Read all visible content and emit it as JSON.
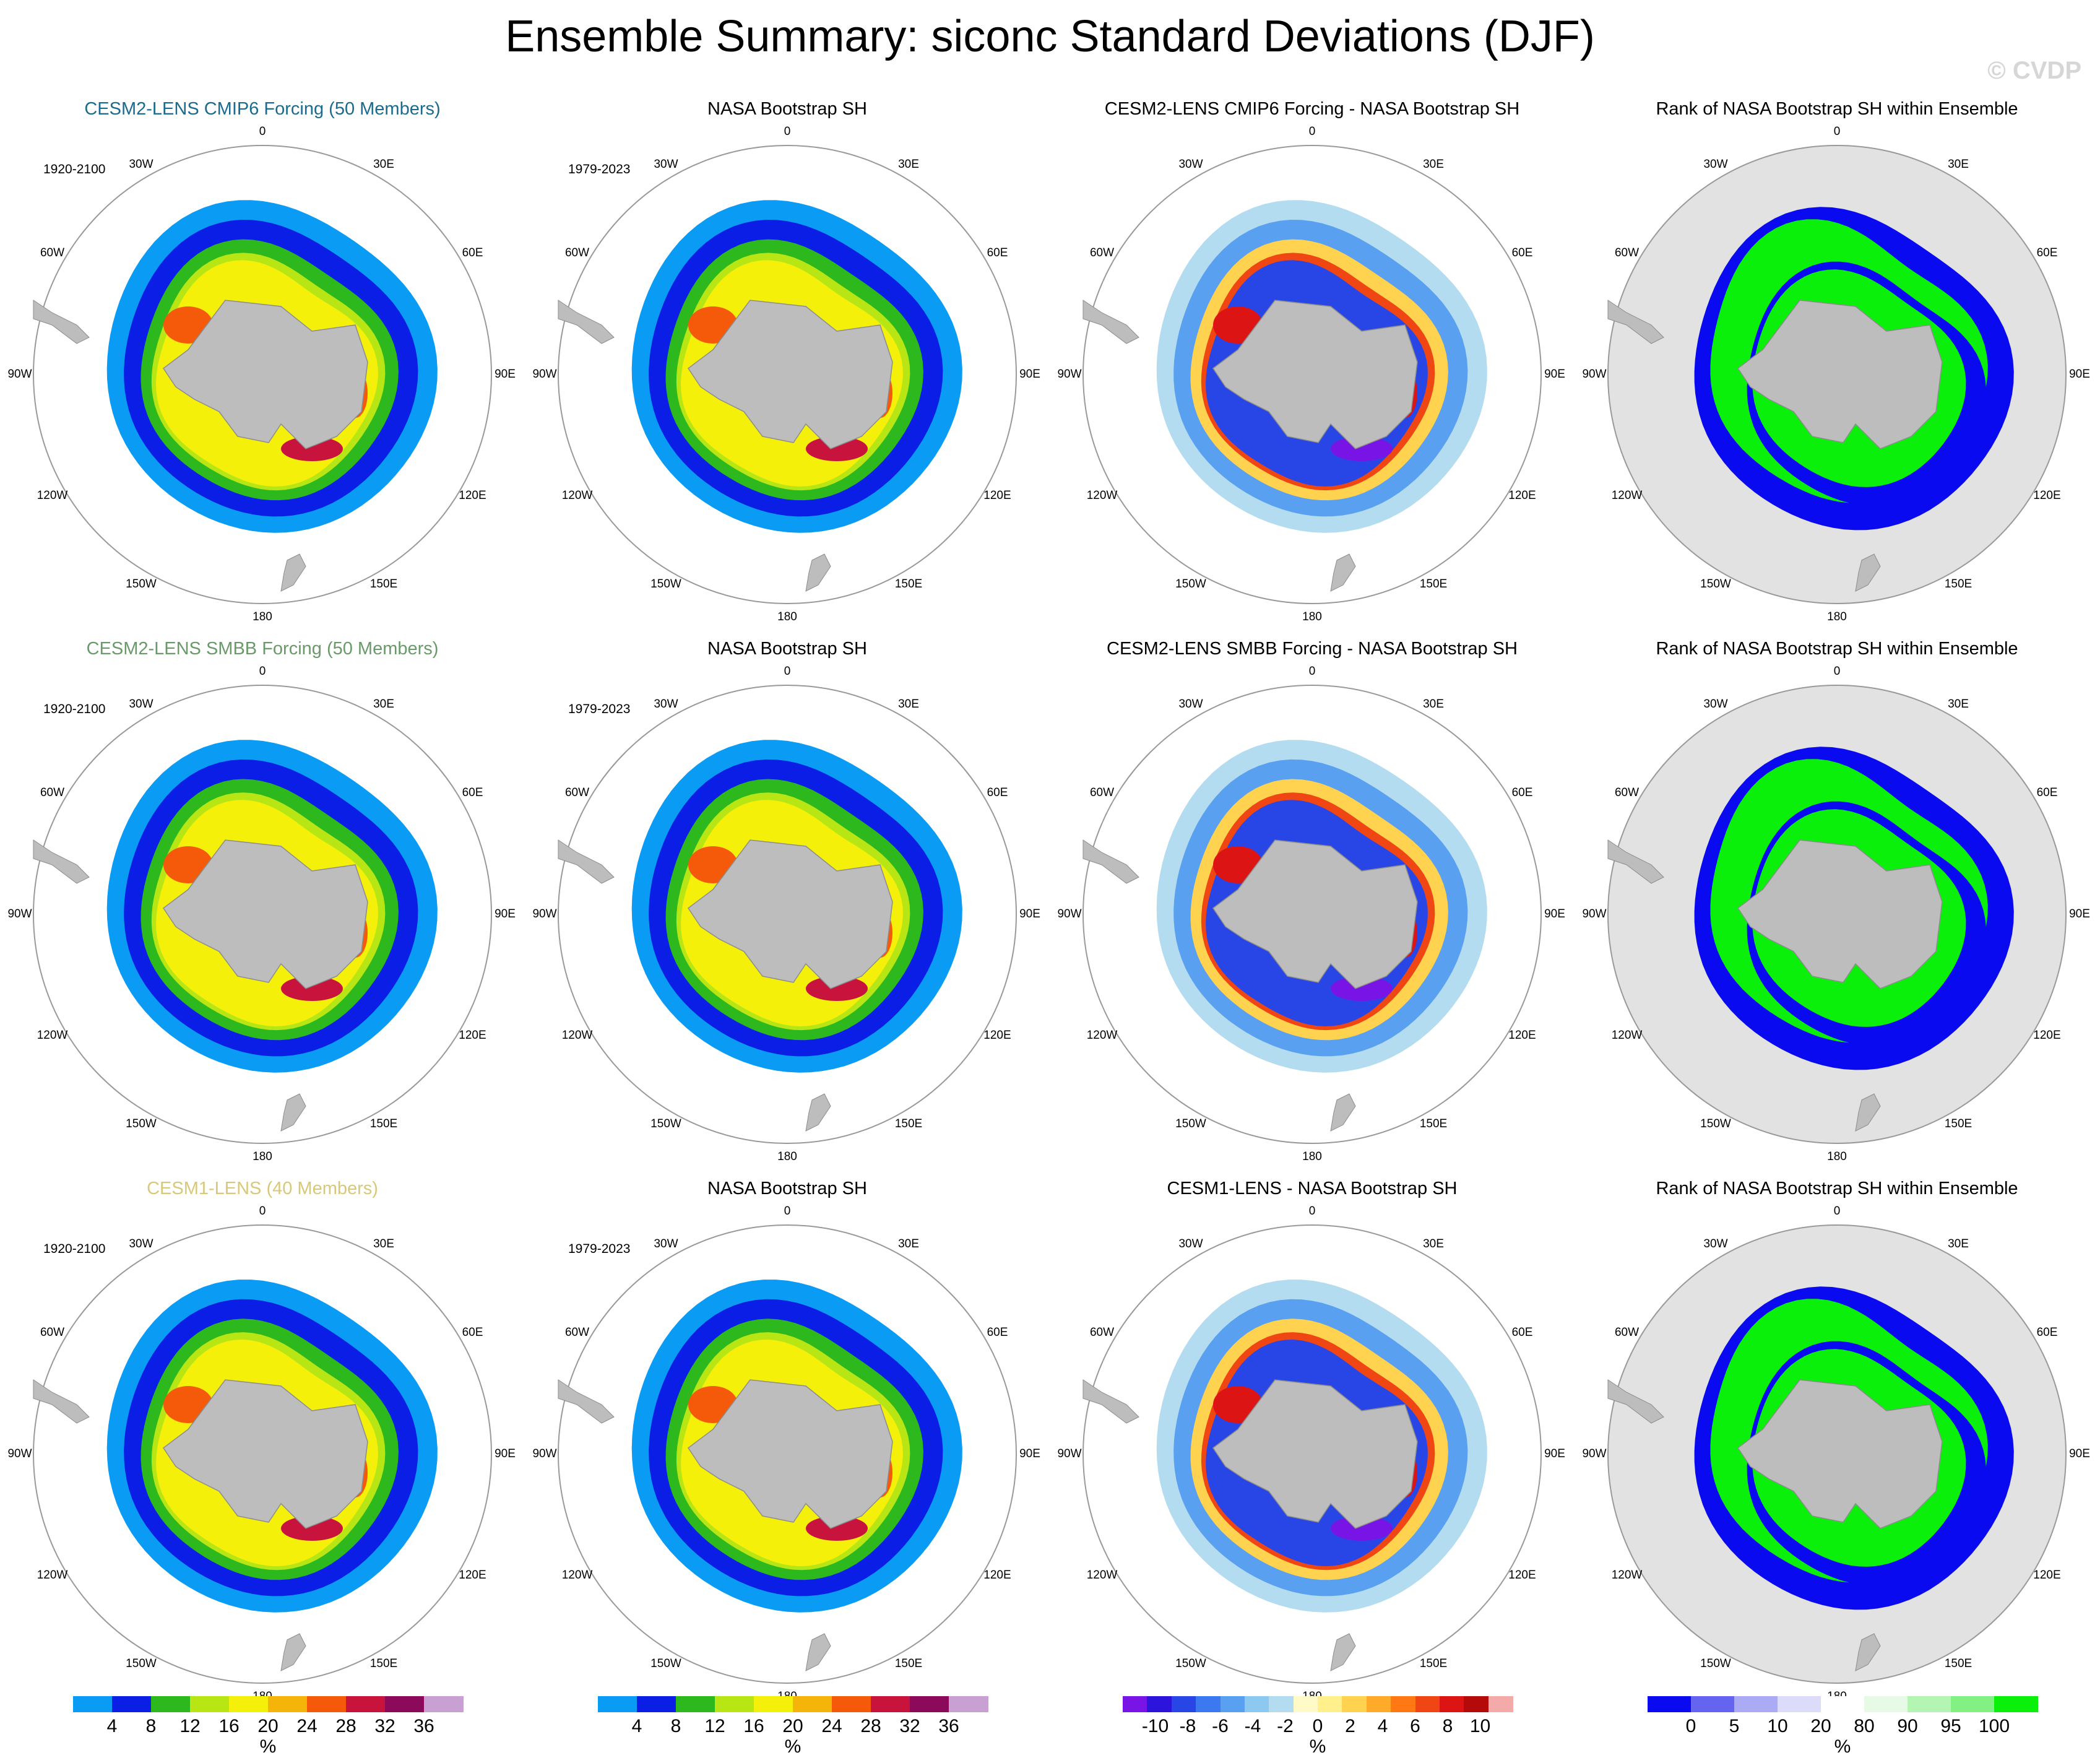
{
  "figure": {
    "title": "Ensemble Summary: siconc Standard Deviations (DJF)",
    "watermark": "© CVDP"
  },
  "rows": [
    {
      "titles": [
        "CESM2-LENS CMIP6 Forcing (50 Members)",
        "NASA Bootstrap SH",
        "CESM2-LENS CMIP6 Forcing - NASA Bootstrap SH",
        "Rank of NASA Bootstrap SH within Ensemble"
      ],
      "title_color": "#1a6b8f",
      "period_model": "1920-2100",
      "period_obs": "1979-2023"
    },
    {
      "titles": [
        "CESM2-LENS SMBB Forcing (50 Members)",
        "NASA Bootstrap SH",
        "CESM2-LENS SMBB Forcing - NASA Bootstrap SH",
        "Rank of NASA Bootstrap SH within Ensemble"
      ],
      "title_color": "#6a9a6a",
      "period_model": "1920-2100",
      "period_obs": "1979-2023"
    },
    {
      "titles": [
        "CESM1-LENS (40 Members)",
        "NASA Bootstrap SH",
        "CESM1-LENS - NASA Bootstrap SH",
        "Rank of NASA Bootstrap SH within Ensemble"
      ],
      "title_color": "#d8c87a",
      "period_model": "1920-2100",
      "period_obs": "1979-2023"
    }
  ],
  "longitude_labels": {
    "l0": "0",
    "l30e": "30E",
    "l60e": "60E",
    "l90e": "90E",
    "l120e": "120E",
    "l150e": "150E",
    "l180": "180",
    "l150w": "150W",
    "l120w": "120W",
    "l90w": "90W",
    "l60w": "60W",
    "l30w": "30W"
  },
  "colorbars": {
    "stddev": {
      "labels": [
        "4",
        "8",
        "12",
        "16",
        "20",
        "24",
        "28",
        "32",
        "36"
      ],
      "colors": [
        "#0a9cf5",
        "#0a1ee6",
        "#2db81e",
        "#b8e614",
        "#f5f00a",
        "#f5b40a",
        "#f55a0a",
        "#c8143c",
        "#8c0a5a",
        "#c8a0d2"
      ],
      "unit": "%"
    },
    "diff": {
      "labels": [
        "-10",
        "-8",
        "-6",
        "-4",
        "-2",
        "0",
        "2",
        "4",
        "6",
        "8",
        "10"
      ],
      "colors": [
        "#7814e6",
        "#2d14dc",
        "#2846e6",
        "#3c78f0",
        "#5aa0f0",
        "#8cc8f0",
        "#b4dcf0",
        "#fffac8",
        "#fff08c",
        "#ffd250",
        "#ffaa28",
        "#ff7814",
        "#f04614",
        "#dc1414",
        "#b40a0a",
        "#f5aaaa"
      ],
      "unit": "%"
    },
    "rank": {
      "labels": [
        "0",
        "5",
        "10",
        "20",
        "80",
        "90",
        "95",
        "100"
      ],
      "colors": [
        "#0a0af0",
        "#6464f0",
        "#aaaaf5",
        "#dcdcfa",
        "#ffffff",
        "#e6fae6",
        "#b4f5b4",
        "#82f082",
        "#0af00a"
      ],
      "unit": "%"
    }
  }
}
